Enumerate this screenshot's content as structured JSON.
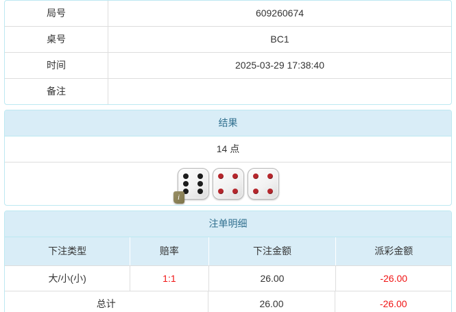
{
  "colors": {
    "panel_border": "#bce8f1",
    "heading_bg": "#d9edf7",
    "heading_text": "#31708f",
    "grid_line": "#dddddd",
    "body_text": "#333333",
    "negative_text": "#f01414",
    "black_pip": "#1c1c1c",
    "red_pip": "#b5262c",
    "badge_bg": "#857b50"
  },
  "info_table": {
    "rows": [
      {
        "label": "局号",
        "value": "609260674"
      },
      {
        "label": "桌号",
        "value": "BC1"
      },
      {
        "label": "时间",
        "value": "2025-03-29 17:38:40"
      },
      {
        "label": "备注",
        "value": ""
      }
    ]
  },
  "result_panel": {
    "title": "结果",
    "points": "14 点",
    "dice": [
      {
        "value": 6,
        "pip_color": "#1c1c1c"
      },
      {
        "value": 4,
        "pip_color": "#b5262c"
      },
      {
        "value": 4,
        "pip_color": "#b5262c"
      }
    ],
    "info_badge": "i"
  },
  "bets_panel": {
    "title": "注单明细",
    "columns": [
      "下注类型",
      "赔率",
      "下注金额",
      "派彩金额"
    ],
    "rows": [
      {
        "bet_type": "大/小(小)",
        "odds": "1:1",
        "bet_amount": "26.00",
        "payout": "-26.00"
      }
    ],
    "total": {
      "label": "总计",
      "bet_amount": "26.00",
      "payout": "-26.00"
    }
  }
}
